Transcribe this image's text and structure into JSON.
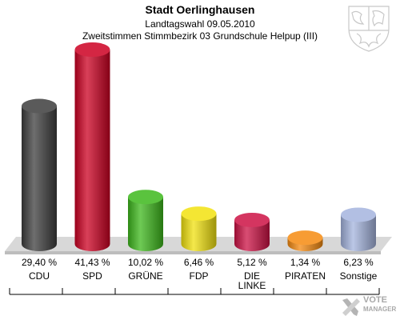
{
  "header": {
    "title": "Stadt Oerlinghausen",
    "subtitle1": "Landtagswahl 09.05.2010",
    "subtitle2": "Zweitstimmen Stimmbezirk 03 Grundschule Helpup (III)"
  },
  "crest": {
    "icon": "nrw-coat-of-arms-icon"
  },
  "watermark": {
    "line1": "VOTE",
    "line2": "MANAGER",
    "icon": "ballot-cross-icon"
  },
  "chart_data": {
    "type": "bar",
    "title": "Stadt Oerlinghausen",
    "categories": [
      "CDU",
      "SPD",
      "GRÜNE",
      "FDP",
      "DIE LINKE",
      "PIRATEN",
      "Sonstige"
    ],
    "values": [
      29.4,
      41.43,
      10.02,
      6.46,
      5.12,
      1.34,
      6.23
    ],
    "value_labels": [
      "29,40 %",
      "41,43 %",
      "10,02 %",
      "6,46 %",
      "5,12 %",
      "1,34 %",
      "6,23 %"
    ],
    "colors": [
      "#3d3d3d",
      "#cc0022",
      "#3db81c",
      "#f2e20f",
      "#cc1144",
      "#f58a10",
      "#a4b4de"
    ],
    "ylim": [
      0,
      45
    ],
    "xlabel": "",
    "ylabel": "",
    "grid": false,
    "legend": "none"
  }
}
